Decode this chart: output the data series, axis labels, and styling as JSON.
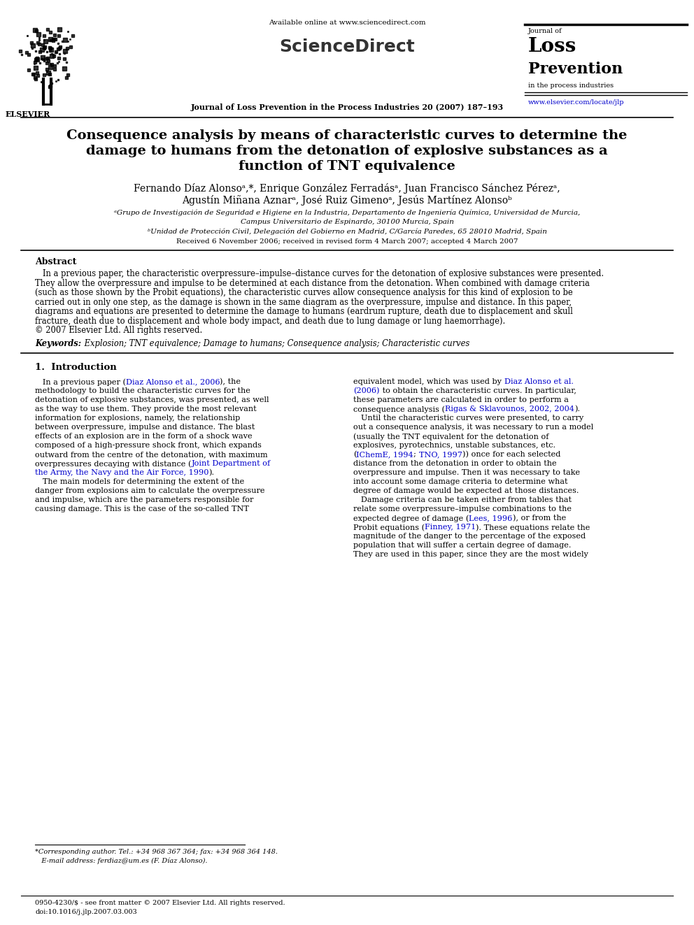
{
  "page_width": 9.92,
  "page_height": 13.23,
  "bg_color": "#ffffff",
  "header_available_text": "Available online at www.sciencedirect.com",
  "journal_name_top": "Journal of Loss Prevention in the Process Industries 20 (2007) 187–193",
  "journal_side_line1": "Journal of",
  "journal_side_line2": "Loss",
  "journal_side_line3": "Prevention",
  "journal_side_line4": "in the process industries",
  "journal_url": "www.elsevier.com/locate/jlp",
  "elsevier_text": "ELSEVIER",
  "sciencedirect_text": "ScienceDirect",
  "title_line1": "Consequence analysis by means of characteristic curves to determine the",
  "title_line2": "damage to humans from the detonation of explosive substances as a",
  "title_line3": "function of TNT equivalence",
  "authors_line1": "Fernando Díaz Alonsoᵃ,*, Enrique González Ferradásᵃ, Juan Francisco Sánchez Pérezᵃ,",
  "authors_line2": "Agustín Miñana Aznarᵃ, José Ruiz Gimenoᵃ, Jesús Martínez Alonsoᵇ",
  "affil_a": "ᵃGrupo de Investigación de Seguridad e Higiene en la Industria, Departamento de Ingeniería Química, Universidad de Murcia,",
  "affil_a2": "Campus Universitario de Espinardo, 30100 Murcia, Spain",
  "affil_b": "ᵇUnidad de Protección Civil, Delegación del Gobierno en Madrid, C/García Paredes, 65 28010 Madrid, Spain",
  "received": "Received 6 November 2006; received in revised form 4 March 2007; accepted 4 March 2007",
  "abstract_header": "Abstract",
  "copyright_text": "© 2007 Elsevier Ltd. All rights reserved.",
  "keywords_label": "Keywords:",
  "keywords_text": " Explosion; TNT equivalence; Damage to humans; Consequence analysis; Characteristic curves",
  "section1_header": "1.  Introduction",
  "link_color": "#0000cc",
  "text_color": "#000000",
  "title_color": "#000000",
  "abstract_lines": [
    "   In a previous paper, the characteristic overpressure–impulse–distance curves for the detonation of explosive substances were presented.",
    "They allow the overpressure and impulse to be determined at each distance from the detonation. When combined with damage criteria",
    "(such as those shown by the Probit equations), the characteristic curves allow consequence analysis for this kind of explosion to be",
    "carried out in only one step, as the damage is shown in the same diagram as the overpressure, impulse and distance. In this paper,",
    "diagrams and equations are presented to determine the damage to humans (eardrum rupture, death due to displacement and skull",
    "fracture, death due to displacement and whole body impact, and death due to lung damage or lung haemorrhage)."
  ],
  "left_col_lines": [
    "   In a previous paper (Diaz Alonso et al., 2006), the",
    "methodology to build the characteristic curves for the",
    "detonation of explosive substances, was presented, as well",
    "as the way to use them. They provide the most relevant",
    "information for explosions, namely, the relationship",
    "between overpressure, impulse and distance. The blast",
    "effects of an explosion are in the form of a shock wave",
    "composed of a high-pressure shock front, which expands",
    "outward from the centre of the detonation, with maximum",
    "overpressures decaying with distance (Joint Department of",
    "the Army, the Navy and the Air Force, 1990).",
    "   The main models for determining the extent of the",
    "danger from explosions aim to calculate the overpressure",
    "and impulse, which are the parameters responsible for",
    "causing damage. This is the case of the so-called TNT"
  ],
  "right_col_lines": [
    [
      "equivalent model, which was used by ",
      "black",
      "Diaz Alonso et al.",
      "blue"
    ],
    [
      "(2006)",
      "blue",
      " to obtain the characteristic curves. In particular,",
      "black"
    ],
    [
      "these parameters are calculated in order to perform a",
      "black"
    ],
    [
      "consequence analysis (",
      "black",
      "Rigas & Sklavounos, 2002, 2004",
      "blue",
      ").",
      "black"
    ],
    [
      "   Until the characteristic curves were presented, to carry",
      "black"
    ],
    [
      "out a consequence analysis, it was necessary to run a model",
      "black"
    ],
    [
      "(usually the TNT equivalent for the detonation of",
      "black"
    ],
    [
      "explosives, pyrotechnics, unstable substances, etc.",
      "black"
    ],
    [
      "(",
      "black",
      "IChemE, 1994",
      "blue",
      "; ",
      "black",
      "TNO, 1997",
      "blue",
      ")) once for each selected",
      "black"
    ],
    [
      "distance from the detonation in order to obtain the",
      "black"
    ],
    [
      "overpressure and impulse. Then it was necessary to take",
      "black"
    ],
    [
      "into account some damage criteria to determine what",
      "black"
    ],
    [
      "degree of damage would be expected at those distances.",
      "black"
    ],
    [
      "   Damage criteria can be taken either from tables that",
      "black"
    ],
    [
      "relate some overpressure–impulse combinations to the",
      "black"
    ],
    [
      "expected degree of damage (",
      "black",
      "Lees, 1996",
      "blue",
      "), or from the",
      "black"
    ],
    [
      "Probit equations (",
      "black",
      "Finney, 1971",
      "blue",
      "). These equations relate the",
      "black"
    ],
    [
      "magnitude of the danger to the percentage of the exposed",
      "black"
    ],
    [
      "population that will suffer a certain degree of damage.",
      "black"
    ],
    [
      "They are used in this paper, since they are the most widely",
      "black"
    ]
  ],
  "left_col_special": {
    "10": [
      "overpressures decaying with distance (",
      "black",
      "Joint Department of",
      "blue"
    ],
    "11": [
      "the Army, the Navy and the Air Force, 1990",
      "blue",
      ").",
      "black"
    ]
  },
  "footnote1": "*Corresponding author. Tel.: +34 968 367 364; fax: +34 968 364 148.",
  "footnote2": "   E-mail address: ferdiaz@um.es (F. Díaz Alonso).",
  "bottom1": "0950-4230/$ - see front matter © 2007 Elsevier Ltd. All rights reserved.",
  "bottom2": "doi:10.1016/j.jlp.2007.03.003"
}
